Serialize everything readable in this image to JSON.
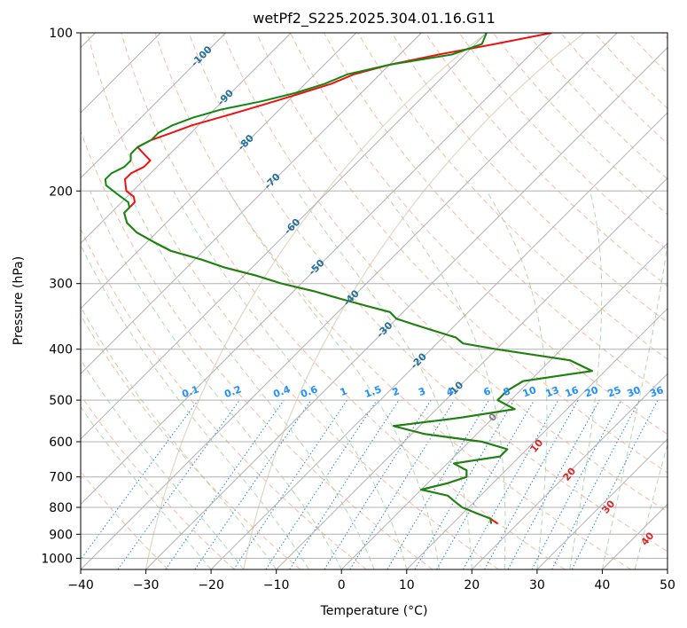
{
  "chart_data": {
    "type": "line",
    "title": "wetPf2_S225.2025.304.01.16.G11",
    "xlabel": "Temperature (°C)",
    "ylabel": "Pressure (hPa)",
    "xlim": [
      -40,
      50
    ],
    "ylim": [
      1050,
      100
    ],
    "y_scale": "log",
    "x_ticks": [
      "−40",
      "−30",
      "−20",
      "−10",
      "0",
      "10",
      "20",
      "30",
      "40",
      "50"
    ],
    "x_tick_values": [
      -40,
      -30,
      -20,
      -10,
      0,
      10,
      20,
      30,
      40,
      50
    ],
    "y_ticks": [
      "100",
      "200",
      "300",
      "400",
      "500",
      "600",
      "700",
      "800",
      "900",
      "1000"
    ],
    "y_tick_values": [
      100,
      200,
      300,
      400,
      500,
      600,
      700,
      800,
      900,
      1000
    ],
    "grid": true,
    "skewed_isotherms": true,
    "colors": {
      "temperature": "#ee1111",
      "dewpoint": "#118811",
      "isotherm_labels": "#1f6f9f",
      "mixing_ratio_labels": "#1e90ff",
      "moist_adiabat_labels": "#d62728",
      "zero_label": "#7f7f7f",
      "dry_adiabat": "#f4a582",
      "moist_adiabat": "#9ccf9c",
      "mixing_ratio_lines": "#1e88e5"
    },
    "isotherm_labels": [
      {
        "text": "-100",
        "t": -100,
        "p": 111
      },
      {
        "text": "-90",
        "t": -90,
        "p": 133
      },
      {
        "text": "-80",
        "t": -80,
        "p": 162
      },
      {
        "text": "-70",
        "t": -70,
        "p": 192
      },
      {
        "text": "-60",
        "t": -60,
        "p": 234
      },
      {
        "text": "-50",
        "t": -50,
        "p": 280
      },
      {
        "text": "-40",
        "t": -40,
        "p": 320
      },
      {
        "text": "-30",
        "t": -30,
        "p": 368
      },
      {
        "text": "-20",
        "t": -20,
        "p": 422
      },
      {
        "text": "-10",
        "t": -10,
        "p": 478
      },
      {
        "text": "0",
        "t": 0,
        "p": 540
      }
    ],
    "mixing_ratio_labels": [
      "0.1",
      "0.2",
      "0.4",
      "0.6",
      "1",
      "1.5",
      "2",
      "3",
      "4",
      "6",
      "8",
      "10",
      "13",
      "16",
      "20",
      "25",
      "30",
      "36"
    ],
    "mixing_ratio_values": [
      0.1,
      0.2,
      0.4,
      0.6,
      1,
      1.5,
      2,
      3,
      4,
      6,
      8,
      10,
      13,
      16,
      20,
      25,
      30,
      36
    ],
    "mixing_ratio_label_x": [
      -23,
      -16.5,
      -9,
      -4.8,
      0.5,
      5,
      8.5,
      12.5,
      16.8,
      22.5,
      25.5,
      29,
      32.5,
      35.5,
      38.5,
      42,
      45,
      48.5
    ],
    "moist_adiabat_labels": [
      {
        "text": "10",
        "t": 30,
        "p": 612
      },
      {
        "text": "20",
        "t": 35,
        "p": 693
      },
      {
        "text": "30",
        "t": 41,
        "p": 800
      },
      {
        "text": "40",
        "t": 47,
        "p": 920
      }
    ],
    "series": [
      {
        "name": "Temperature",
        "p": [
          100,
          105,
          110,
          115,
          120,
          125,
          130,
          135,
          140,
          145,
          150,
          155,
          160,
          165,
          170,
          175,
          180,
          185,
          190,
          195,
          200,
          205,
          210,
          215,
          220,
          225,
          230,
          240,
          250,
          260,
          270,
          280,
          290,
          300,
          310,
          320,
          330,
          340,
          350,
          360,
          370,
          380,
          390,
          400,
          420,
          440,
          460,
          480,
          500,
          520,
          540,
          560,
          580,
          600,
          620,
          640,
          660,
          680,
          700,
          720,
          740,
          760,
          780,
          800,
          820,
          840,
          860
        ],
        "t": [
          -50,
          -57,
          -64,
          -70,
          -74,
          -76,
          -79,
          -82,
          -85,
          -88,
          -91,
          -93,
          -95,
          -96,
          -94,
          -92,
          -92,
          -93,
          -93,
          -92,
          -91,
          -89,
          -88,
          -88,
          -88,
          -87,
          -86,
          -83,
          -79,
          -75,
          -69,
          -64,
          -58,
          -53,
          -47,
          -42,
          -37,
          -32,
          -30,
          -26,
          -22,
          -18,
          -16,
          -10,
          3,
          8,
          -1,
          -2,
          -2,
          2,
          -5,
          -14,
          -8,
          2,
          7,
          7,
          1,
          4,
          5,
          3,
          0,
          5,
          7,
          9,
          12,
          15,
          17
        ]
      },
      {
        "name": "Dewpoint",
        "p": [
          100,
          105,
          110,
          115,
          120,
          125,
          130,
          135,
          140,
          145,
          150,
          155,
          160,
          165,
          170,
          175,
          180,
          185,
          190,
          195,
          200,
          205,
          210,
          215,
          220,
          225,
          230,
          240,
          250,
          260,
          270,
          280,
          290,
          300,
          310,
          320,
          330,
          340,
          350,
          360,
          370,
          380,
          390,
          400,
          420,
          440,
          460,
          480,
          500,
          520,
          540,
          560,
          580,
          600,
          620,
          640,
          660,
          680,
          700,
          720,
          740,
          760,
          780,
          800,
          820,
          840,
          860
        ],
        "t": [
          -60,
          -59,
          -62,
          -70,
          -75,
          -77,
          -80,
          -84,
          -89,
          -92,
          -94,
          -95,
          -95,
          -96,
          -96,
          -95,
          -95,
          -96,
          -96,
          -95,
          -93,
          -91,
          -89,
          -88,
          -88,
          -87,
          -86,
          -83,
          -79,
          -75,
          -69,
          -64,
          -58,
          -53,
          -47,
          -42,
          -37,
          -32,
          -30,
          -26,
          -22,
          -18,
          -16,
          -10,
          3,
          8,
          -1,
          -2,
          -2,
          2,
          -5,
          -14,
          -8,
          2,
          7,
          7,
          1,
          4,
          5,
          3,
          0,
          5,
          7,
          9,
          12,
          15,
          16
        ]
      }
    ]
  }
}
